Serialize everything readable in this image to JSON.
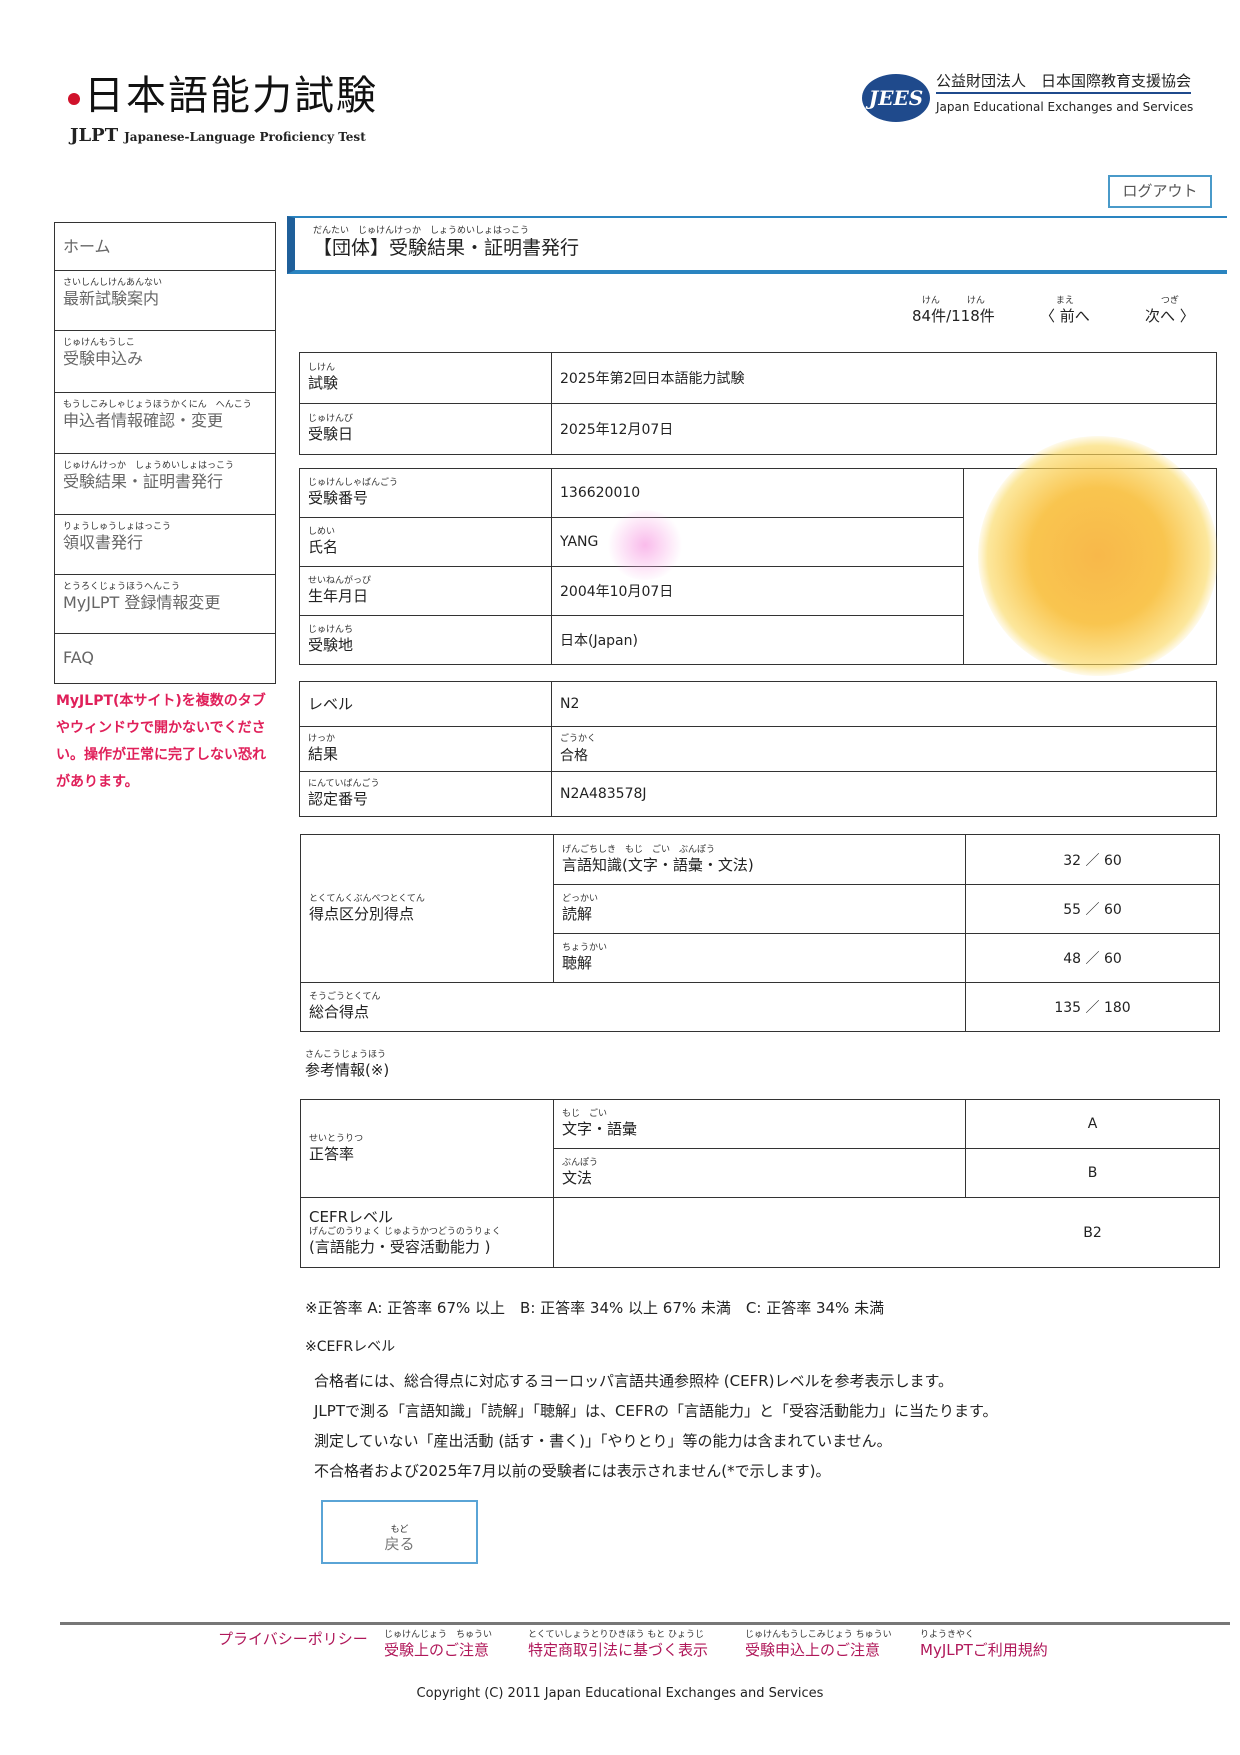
{
  "header": {
    "logo_title": "日本語能力試験",
    "logo_abbr": "JLPT",
    "logo_subtitle": "Japanese-Language Proficiency Test",
    "org_logo": "JEES",
    "org_name_jp": "公益財団法人　日本国際教育支援協会",
    "org_name_en": "Japan Educational Exchanges and Services",
    "logout": "ログアウト",
    "brand_color": "#2a84c0"
  },
  "sidebar": {
    "items": [
      {
        "ruby": "",
        "label": "ホーム"
      },
      {
        "ruby": "さいしんしけんあんない",
        "label": "最新試験案内"
      },
      {
        "ruby": "じゅけんもうしこ",
        "label": "受験申込み"
      },
      {
        "ruby": "もうしこみしゃじょうほうかくにん　へんこう",
        "label": "申込者情報確認・変更"
      },
      {
        "ruby": "じゅけんけっか　しょうめいしょはっこう",
        "label": "受験結果・証明書発行"
      },
      {
        "ruby": "りょうしゅうしょはっこう",
        "label": "領収書発行"
      },
      {
        "ruby": "とうろくじょうほうへんこう",
        "label": "MyJLPT 登録情報変更"
      },
      {
        "ruby": "",
        "label": "FAQ"
      }
    ],
    "warning": "MyJLPT(本サイト)を複数のタブやウィンドウで開かないでください。操作が正常に完了しない恐れがあります。"
  },
  "page": {
    "title_ruby": "だんたい　じゅけんけっか　しょうめいしょはっこう",
    "title": "【団体】受験結果・証明書発行",
    "count_ruby": "けん　　　けん",
    "count": "84件/118件",
    "prev_ruby": "まえ",
    "prev": "〈 前へ",
    "next_ruby": "つぎ",
    "next": "次へ 〉"
  },
  "exam": [
    {
      "ruby": "しけん",
      "label": "試験",
      "value": "2025年第2回日本語能力試験"
    },
    {
      "ruby": "じゅけんび",
      "label": "受験日",
      "value": "2025年12月07日"
    }
  ],
  "person": [
    {
      "ruby": "じゅけんしゃばんごう",
      "label": "受験番号",
      "value": "136620010"
    },
    {
      "ruby": "しめい",
      "label": "氏名",
      "value": "YANG"
    },
    {
      "ruby": "せいねんがっぴ",
      "label": "生年月日",
      "value": "2004年10月07日"
    },
    {
      "ruby": "じゅけんち",
      "label": "受験地",
      "value": "日本(Japan)"
    }
  ],
  "result": [
    {
      "ruby": "",
      "label": "レベル",
      "value": "N2"
    },
    {
      "ruby": "けっか",
      "label": "結果",
      "value": "合格",
      "value_ruby": "ごうかく"
    },
    {
      "ruby": "にんていばんごう",
      "label": "認定番号",
      "value": "N2A483578J"
    }
  ],
  "scores": {
    "section_ruby": "とくてんくぶんべつとくてん",
    "section_label": "得点区分別得点",
    "rows": [
      {
        "ruby": "げんごちしき　もじ　ごい　ぶんぽう",
        "label": "言語知識(文字・語彙・文法)",
        "score": "32 ／ 60"
      },
      {
        "ruby": "どっかい",
        "label": "読解",
        "score": "55 ／ 60"
      },
      {
        "ruby": "ちょうかい",
        "label": "聴解",
        "score": "48 ／ 60"
      }
    ],
    "total_ruby": "そうごうとくてん",
    "total_label": "総合得点",
    "total": "135 ／ 180"
  },
  "reference": {
    "heading_ruby": "さんこうじょうほう",
    "heading": "参考情報(※)",
    "rate_ruby": "せいとうりつ",
    "rate_label": "正答率",
    "rows": [
      {
        "ruby": "もじ　ごい",
        "label": "文字・語彙",
        "grade": "A"
      },
      {
        "ruby": "ぶんぽう",
        "label": "文法",
        "grade": "B"
      }
    ],
    "cefr_label": "CEFRレベル",
    "cefr_ruby": "げんごのうりょく じゅようかつどうのうりょく",
    "cefr_sub": "(言語能力・受容活動能力 )",
    "cefr_value": "B2"
  },
  "notes": {
    "rate_note": "※正答率 A: 正答率 67% 以上　B: 正答率 34% 以上 67% 未満　C: 正答率 34% 未満",
    "cefr_heading": "※CEFRレベル",
    "lines": [
      "合格者には、総合得点に対応するヨーロッパ言語共通参照枠 (CEFR)レベルを参考表示します。",
      "JLPTで測る「言語知識」「読解」「聴解」は、CEFRの「言語能力」と「受容活動能力」に当たります。",
      "測定していない「産出活動 (話す・書く)」「やりとり」等の能力は含まれていません。",
      "不合格者および2025年7月以前の受験者には表示されません(*で示します)。"
    ]
  },
  "back": {
    "ruby": "もど",
    "label": "戻る"
  },
  "footer": {
    "links": [
      {
        "ruby": "",
        "label": "プライバシーポリシー"
      },
      {
        "ruby": "じゅけんじょう　ちゅうい",
        "label": "受験上のご注意"
      },
      {
        "ruby": "とくていしょうとりひきほう もと ひょうじ",
        "label": "特定商取引法に基づく表示"
      },
      {
        "ruby": "じゅけんもうしこみじょう ちゅうい",
        "label": "受験申込上のご注意"
      },
      {
        "ruby": "りようきやく",
        "label": "MyJLPTご利用規約"
      }
    ],
    "copyright": "Copyright (C) 2011 Japan Educational Exchanges and Services"
  }
}
